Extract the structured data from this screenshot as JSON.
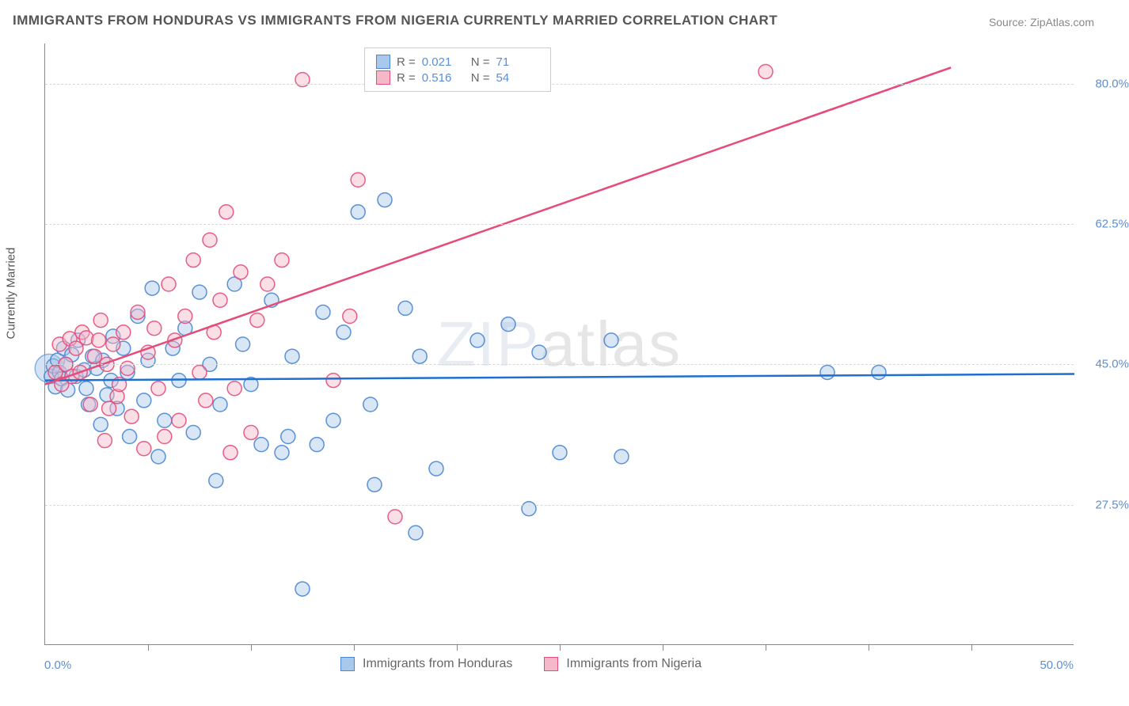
{
  "title": "IMMIGRANTS FROM HONDURAS VS IMMIGRANTS FROM NIGERIA CURRENTLY MARRIED CORRELATION CHART",
  "source": "Source: ZipAtlas.com",
  "watermark_a": "ZIP",
  "watermark_b": "atlas",
  "ylabel": "Currently Married",
  "chart": {
    "type": "scatter",
    "xlim": [
      0,
      50
    ],
    "ylim": [
      10,
      85
    ],
    "xaxis_min_label": "0.0%",
    "xaxis_max_label": "50.0%",
    "xticks": [
      5,
      10,
      15,
      20,
      25,
      30,
      35,
      40,
      45
    ],
    "yticks": [
      {
        "y": 27.5,
        "label": "27.5%"
      },
      {
        "y": 45.0,
        "label": "45.0%"
      },
      {
        "y": 62.5,
        "label": "62.5%"
      },
      {
        "y": 80.0,
        "label": "80.0%"
      }
    ],
    "grid_color": "#d8d8d8",
    "background_color": "#ffffff",
    "marker_radius": 9,
    "marker_opacity": 0.45,
    "marker_stroke_opacity": 0.9,
    "line_width": 2.5,
    "series": [
      {
        "id": "honduras",
        "label": "Immigrants from Honduras",
        "color_fill": "#a8c8ec",
        "color_stroke": "#4a86d0",
        "line_color": "#1f6fd0",
        "R": "0.021",
        "N": "71",
        "regression": {
          "x1": 0,
          "y1": 43.0,
          "x2": 50,
          "y2": 43.8
        },
        "points": [
          [
            0.3,
            43.5
          ],
          [
            0.4,
            44.8
          ],
          [
            0.5,
            42.2
          ],
          [
            0.6,
            45.5
          ],
          [
            0.7,
            44.0
          ],
          [
            0.8,
            43.2
          ],
          [
            0.9,
            47.0
          ],
          [
            1.0,
            45.0
          ],
          [
            1.1,
            41.8
          ],
          [
            1.3,
            46.2
          ],
          [
            1.5,
            43.5
          ],
          [
            1.6,
            48.0
          ],
          [
            1.9,
            44.3
          ],
          [
            2.0,
            42.0
          ],
          [
            2.1,
            40.0
          ],
          [
            2.3,
            46.0
          ],
          [
            2.5,
            44.5
          ],
          [
            2.7,
            37.5
          ],
          [
            2.8,
            45.5
          ],
          [
            3.0,
            41.2
          ],
          [
            3.2,
            43.0
          ],
          [
            3.3,
            48.5
          ],
          [
            3.5,
            39.5
          ],
          [
            3.8,
            47.0
          ],
          [
            4.0,
            44.0
          ],
          [
            4.1,
            36.0
          ],
          [
            4.5,
            51.0
          ],
          [
            4.8,
            40.5
          ],
          [
            5.0,
            45.5
          ],
          [
            5.2,
            54.5
          ],
          [
            5.5,
            33.5
          ],
          [
            5.8,
            38.0
          ],
          [
            6.2,
            47.0
          ],
          [
            6.5,
            43.0
          ],
          [
            6.8,
            49.5
          ],
          [
            7.2,
            36.5
          ],
          [
            7.5,
            54.0
          ],
          [
            8.0,
            45.0
          ],
          [
            8.3,
            30.5
          ],
          [
            8.5,
            40.0
          ],
          [
            9.2,
            55.0
          ],
          [
            9.6,
            47.5
          ],
          [
            10.0,
            42.5
          ],
          [
            10.5,
            35.0
          ],
          [
            11.0,
            53.0
          ],
          [
            11.5,
            34.0
          ],
          [
            11.8,
            36.0
          ],
          [
            12.0,
            46.0
          ],
          [
            12.5,
            17.0
          ],
          [
            13.2,
            35.0
          ],
          [
            13.5,
            51.5
          ],
          [
            14.0,
            38.0
          ],
          [
            14.5,
            49.0
          ],
          [
            15.2,
            64.0
          ],
          [
            15.8,
            40.0
          ],
          [
            16.0,
            30.0
          ],
          [
            16.5,
            65.5
          ],
          [
            17.5,
            52.0
          ],
          [
            18.0,
            24.0
          ],
          [
            18.2,
            46.0
          ],
          [
            19.0,
            32.0
          ],
          [
            21.0,
            48.0
          ],
          [
            22.5,
            50.0
          ],
          [
            23.5,
            27.0
          ],
          [
            24.0,
            46.5
          ],
          [
            25.0,
            34.0
          ],
          [
            27.5,
            48.0
          ],
          [
            28.0,
            33.5
          ],
          [
            38.0,
            44.0
          ],
          [
            40.5,
            44.0
          ]
        ],
        "big_point": [
          0.2,
          44.5,
          18
        ]
      },
      {
        "id": "nigeria",
        "label": "Immigrants from Nigeria",
        "color_fill": "#f5b8c9",
        "color_stroke": "#e54c7a",
        "line_color": "#e54c7a",
        "R": "0.516",
        "N": "54",
        "regression": {
          "x1": 0,
          "y1": 42.5,
          "x2": 44,
          "y2": 82.0
        },
        "regression_dash": {
          "x1": 36,
          "y1": 74.8,
          "x2": 44,
          "y2": 82.0
        },
        "points": [
          [
            0.5,
            44.0
          ],
          [
            0.7,
            47.5
          ],
          [
            0.8,
            42.5
          ],
          [
            1.0,
            45.0
          ],
          [
            1.2,
            48.2
          ],
          [
            1.3,
            43.5
          ],
          [
            1.5,
            47.0
          ],
          [
            1.7,
            44.0
          ],
          [
            1.8,
            49.0
          ],
          [
            2.0,
            48.3
          ],
          [
            2.2,
            40.0
          ],
          [
            2.4,
            46.0
          ],
          [
            2.6,
            48.0
          ],
          [
            2.7,
            50.5
          ],
          [
            3.0,
            45.0
          ],
          [
            3.1,
            39.5
          ],
          [
            3.3,
            47.5
          ],
          [
            3.5,
            41.0
          ],
          [
            3.8,
            49.0
          ],
          [
            4.0,
            44.5
          ],
          [
            4.2,
            38.5
          ],
          [
            4.5,
            51.5
          ],
          [
            4.8,
            34.5
          ],
          [
            5.0,
            46.5
          ],
          [
            5.3,
            49.5
          ],
          [
            5.5,
            42.0
          ],
          [
            5.8,
            36.0
          ],
          [
            6.0,
            55.0
          ],
          [
            6.3,
            48.0
          ],
          [
            6.5,
            38.0
          ],
          [
            6.8,
            51.0
          ],
          [
            7.2,
            58.0
          ],
          [
            7.5,
            44.0
          ],
          [
            8.0,
            60.5
          ],
          [
            8.2,
            49.0
          ],
          [
            8.5,
            53.0
          ],
          [
            8.8,
            64.0
          ],
          [
            9.2,
            42.0
          ],
          [
            9.5,
            56.5
          ],
          [
            10.0,
            36.5
          ],
          [
            10.3,
            50.5
          ],
          [
            10.8,
            55.0
          ],
          [
            11.5,
            58.0
          ],
          [
            12.5,
            80.5
          ],
          [
            14.0,
            43.0
          ],
          [
            14.8,
            51.0
          ],
          [
            15.2,
            68.0
          ],
          [
            9.0,
            34.0
          ],
          [
            7.8,
            40.5
          ],
          [
            3.6,
            42.5
          ],
          [
            2.9,
            35.5
          ],
          [
            17.0,
            26.0
          ],
          [
            35.0,
            81.5
          ]
        ]
      }
    ]
  },
  "legend_swatch_blue_fill": "#a8c8ec",
  "legend_swatch_blue_stroke": "#4a86d0",
  "legend_swatch_pink_fill": "#f5b8c9",
  "legend_swatch_pink_stroke": "#e54c7a",
  "stats_labels": {
    "R": "R =",
    "N": "N ="
  }
}
